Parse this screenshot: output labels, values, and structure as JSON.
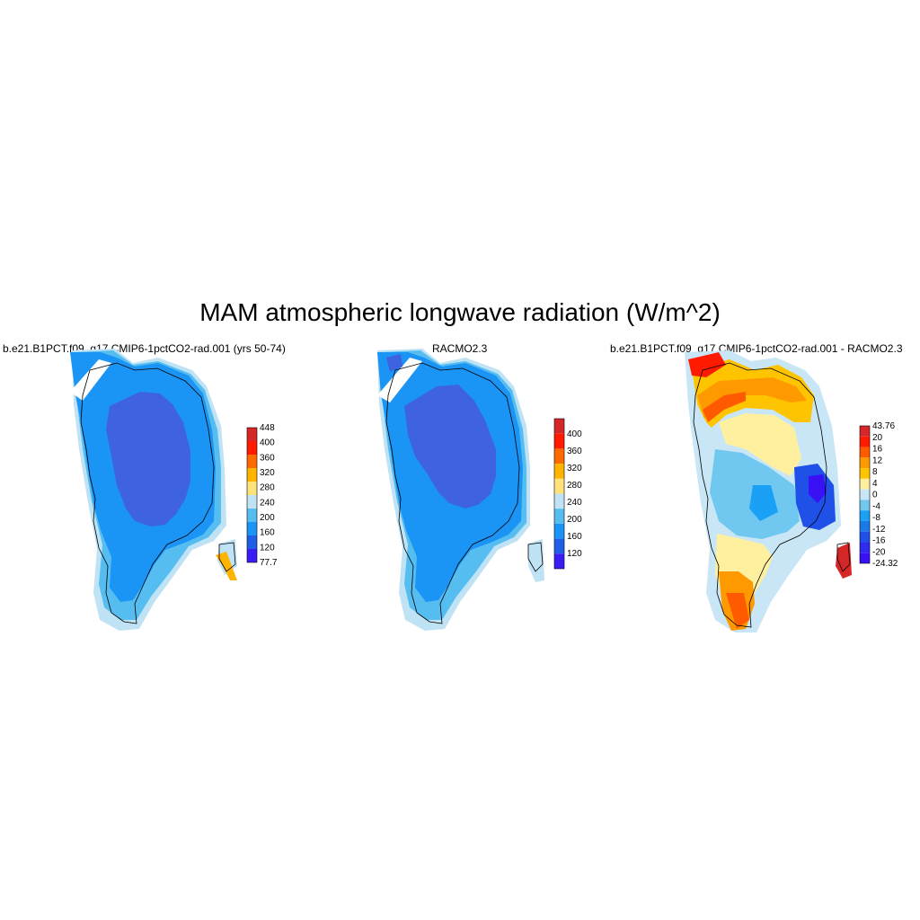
{
  "figure_title": "MAM atmospheric longwave radiation (W/m^2)",
  "panels": [
    {
      "title": "b.e21.B1PCT.f09_g17.CMIP6-1pctCO2-rad.001 (yrs 50-74)",
      "colorbar_labels": [
        "448",
        "400",
        "360",
        "320",
        "280",
        "240",
        "200",
        "160",
        "120",
        "77.7"
      ],
      "colorbar_colors": [
        "#d62728",
        "#ff1a00",
        "#ff6a00",
        "#ffb400",
        "#ffe27a",
        "#bfe3f5",
        "#56bdf0",
        "#1a94f5",
        "#1f5fe8",
        "#3a1cf5"
      ]
    },
    {
      "title": "RACMO2.3",
      "colorbar_labels": [
        "400",
        "360",
        "320",
        "280",
        "240",
        "200",
        "160",
        "120"
      ],
      "colorbar_colors": [
        "#d62728",
        "#ff1a00",
        "#ff6a00",
        "#ffb400",
        "#ffe27a",
        "#bfe3f5",
        "#56bdf0",
        "#1a94f5",
        "#1f5fe8",
        "#3a1cf5"
      ]
    },
    {
      "title": "b.e21.B1PCT.f09_g17.CMIP6-1pctCO2-rad.001 - RACMO2.3",
      "colorbar_labels": [
        "43.76",
        "20",
        "16",
        "12",
        "8",
        "4",
        "0",
        "-4",
        "-8",
        "-12",
        "-16",
        "-20",
        "-24.32"
      ],
      "colorbar_colors": [
        "#d62728",
        "#ff1a00",
        "#ff5a00",
        "#ff9900",
        "#ffc400",
        "#fff0a0",
        "#c8e6f5",
        "#70c8f0",
        "#1aa0f5",
        "#1a7ae8",
        "#1f50e8",
        "#2f2cf0",
        "#3a10f5"
      ]
    }
  ]
}
